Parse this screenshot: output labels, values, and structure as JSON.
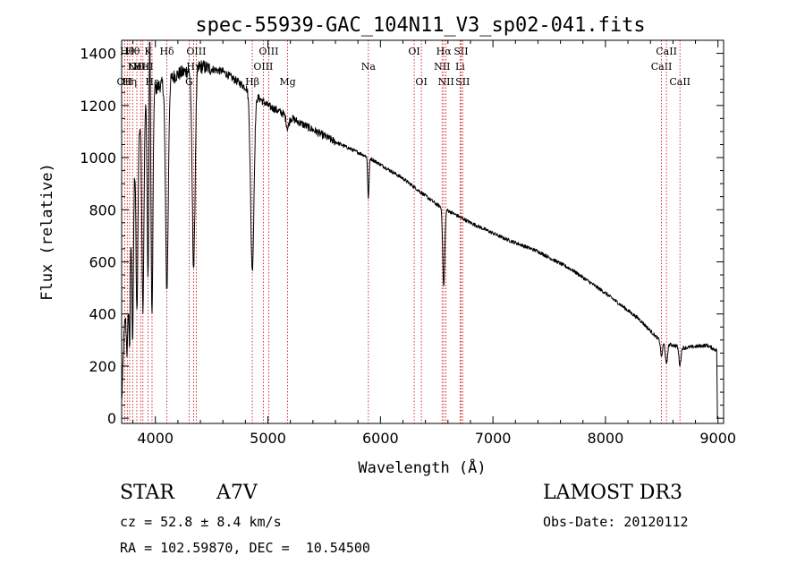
{
  "chart_data": {
    "type": "line",
    "title": "spec-55939-GAC_104N11_V3_sp02-041.fits",
    "xlabel": "Wavelength (Å)",
    "ylabel": "Flux (relative)",
    "xlim": [
      3700,
      9050
    ],
    "ylim": [
      -20,
      1450
    ],
    "xticks": [
      4000,
      5000,
      6000,
      7000,
      8000,
      9000
    ],
    "yticks": [
      0,
      200,
      400,
      600,
      800,
      1000,
      1200,
      1400
    ],
    "xtick_labels": [
      "4000",
      "5000",
      "6000",
      "7000",
      "8000",
      "9000"
    ],
    "ytick_labels": [
      "0",
      "200",
      "400",
      "600",
      "800",
      "1000",
      "1200",
      "1400"
    ],
    "continuum": {
      "x": [
        3700,
        3720,
        3760,
        3820,
        3880,
        3950,
        4050,
        4200,
        4400,
        4600,
        4800,
        5000,
        5300,
        5600,
        5900,
        6200,
        6500,
        6800,
        7100,
        7400,
        7700,
        8000,
        8300,
        8500,
        8700,
        8900,
        8990
      ],
      "y": [
        60,
        300,
        620,
        1000,
        1180,
        1250,
        1280,
        1320,
        1350,
        1330,
        1270,
        1200,
        1130,
        1060,
        1000,
        920,
        820,
        750,
        690,
        640,
        570,
        480,
        380,
        290,
        270,
        280,
        260
      ]
    },
    "absorption_features": [
      {
        "center": 3750,
        "depth": 280,
        "width": 8
      },
      {
        "center": 3771,
        "depth": 400,
        "width": 6
      },
      {
        "center": 3798,
        "depth": 550,
        "width": 7
      },
      {
        "center": 3836,
        "depth": 650,
        "width": 8
      },
      {
        "center": 3889,
        "depth": 760,
        "width": 9
      },
      {
        "center": 3934,
        "depth": 700,
        "width": 7
      },
      {
        "center": 3970,
        "depth": 870,
        "width": 8
      },
      {
        "center": 4102,
        "depth": 800,
        "width": 12
      },
      {
        "center": 4340,
        "depth": 760,
        "width": 13
      },
      {
        "center": 4861,
        "depth": 680,
        "width": 15
      },
      {
        "center": 5175,
        "depth": 45,
        "width": 12
      },
      {
        "center": 5893,
        "depth": 160,
        "width": 6
      },
      {
        "center": 6563,
        "depth": 300,
        "width": 9
      },
      {
        "center": 8498,
        "depth": 55,
        "width": 8
      },
      {
        "center": 8542,
        "depth": 80,
        "width": 9
      },
      {
        "center": 8662,
        "depth": 70,
        "width": 9
      }
    ],
    "emission_spike": {
      "center": 3950,
      "height": 300
    },
    "line_markers": [
      {
        "wave": 3727,
        "label": "OII",
        "row": 3
      },
      {
        "wave": 3750,
        "label": "Hθ",
        "row": 1
      },
      {
        "wave": 3771,
        "label": "Hη",
        "row": 3
      },
      {
        "wave": 3798,
        "label": "Hθ",
        "row": 1
      },
      {
        "wave": 3835,
        "label": "OII",
        "row": 2
      },
      {
        "wave": 3869,
        "label": "NeIII",
        "row": 2
      },
      {
        "wave": 3889,
        "label": "HeI",
        "row": 2
      },
      {
        "wave": 3934,
        "label": "K",
        "row": 1
      },
      {
        "wave": 3970,
        "label": "Hε",
        "row": 3
      },
      {
        "wave": 4102,
        "label": "Hδ",
        "row": 1
      },
      {
        "wave": 4300,
        "label": "G",
        "row": 3
      },
      {
        "wave": 4340,
        "label": "Hγ",
        "row": 2
      },
      {
        "wave": 4363,
        "label": "OIII",
        "row": 1
      },
      {
        "wave": 4861,
        "label": "Hβ",
        "row": 3
      },
      {
        "wave": 4959,
        "label": "OIII",
        "row": 2
      },
      {
        "wave": 5007,
        "label": "OIII",
        "row": 1
      },
      {
        "wave": 5175,
        "label": "Mg",
        "row": 3
      },
      {
        "wave": 5893,
        "label": "Na",
        "row": 2
      },
      {
        "wave": 6300,
        "label": "OI",
        "row": 1
      },
      {
        "wave": 6364,
        "label": "OI",
        "row": 3
      },
      {
        "wave": 6548,
        "label": "NII",
        "row": 2
      },
      {
        "wave": 6563,
        "label": "Hα",
        "row": 1
      },
      {
        "wave": 6583,
        "label": "NII",
        "row": 3
      },
      {
        "wave": 6708,
        "label": "Li",
        "row": 2
      },
      {
        "wave": 6717,
        "label": "SII",
        "row": 1
      },
      {
        "wave": 6731,
        "label": "SII",
        "row": 3
      },
      {
        "wave": 8498,
        "label": "CaII",
        "row": 2
      },
      {
        "wave": 8542,
        "label": "CaII",
        "row": 1
      },
      {
        "wave": 8662,
        "label": "CaII",
        "row": 3
      }
    ],
    "line_color": "#000000",
    "marker_color": "#cc0000"
  },
  "info": {
    "class_label": "STAR",
    "subclass": "A7V",
    "redshift": "cz = 52.8 ± 8.4 km/s",
    "coords": "RA = 102.59870, DEC =  10.54500",
    "survey": "LAMOST DR3",
    "obs_date": "Obs-Date: 20120112"
  }
}
